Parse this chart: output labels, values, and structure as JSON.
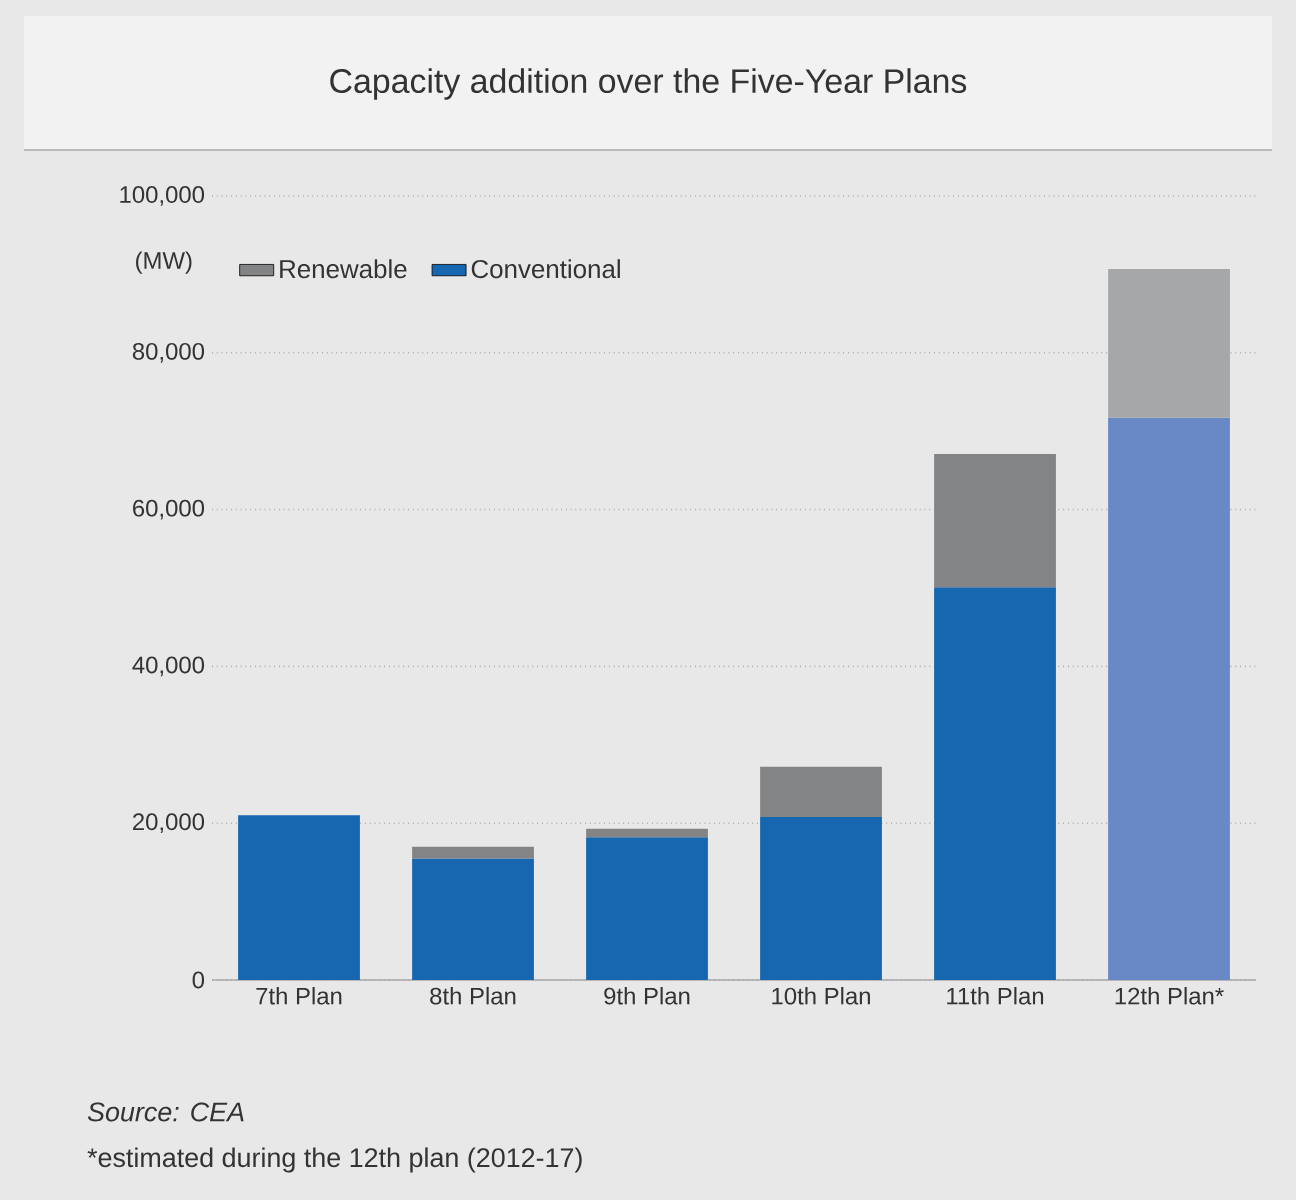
{
  "chart_data": {
    "type": "bar",
    "title": "Capacity addition over the Five-Year Plans",
    "ylabel": "(MW)",
    "categories": [
      "7th Plan",
      "8th Plan",
      "9th Plan",
      "10th Plan",
      "11th Plan",
      "12th Plan*"
    ],
    "stacked": true,
    "series": [
      {
        "name": "Conventional",
        "color": "#1767b0",
        "colors": [
          "#1767b0",
          "#1767b0",
          "#1767b0",
          "#1767b0",
          "#1767b0",
          "#6889c6"
        ],
        "values": [
          21000,
          15500,
          18200,
          20800,
          50100,
          71700
        ]
      },
      {
        "name": "Renewable",
        "color": "#838486",
        "colors": [
          "#838486",
          "#838486",
          "#838486",
          "#838486",
          "#838486",
          "#a6a7a9"
        ],
        "values": [
          null,
          1500,
          1100,
          6400,
          17000,
          19000
        ]
      }
    ],
    "ylim": [
      0,
      100000
    ],
    "yticks": [
      {
        "value": 0,
        "label": "0"
      },
      {
        "value": 20000,
        "label": "20,000"
      },
      {
        "value": 40000,
        "label": "40,000"
      },
      {
        "value": 60000,
        "label": "60,000"
      },
      {
        "value": 80000,
        "label": "80,000"
      },
      {
        "value": 100000,
        "label": "100,000"
      }
    ],
    "grid": "y",
    "legend": "top left",
    "annotations": [
      "Source: CEA",
      "*estimated during the 12th plan (2012-17)"
    ]
  }
}
